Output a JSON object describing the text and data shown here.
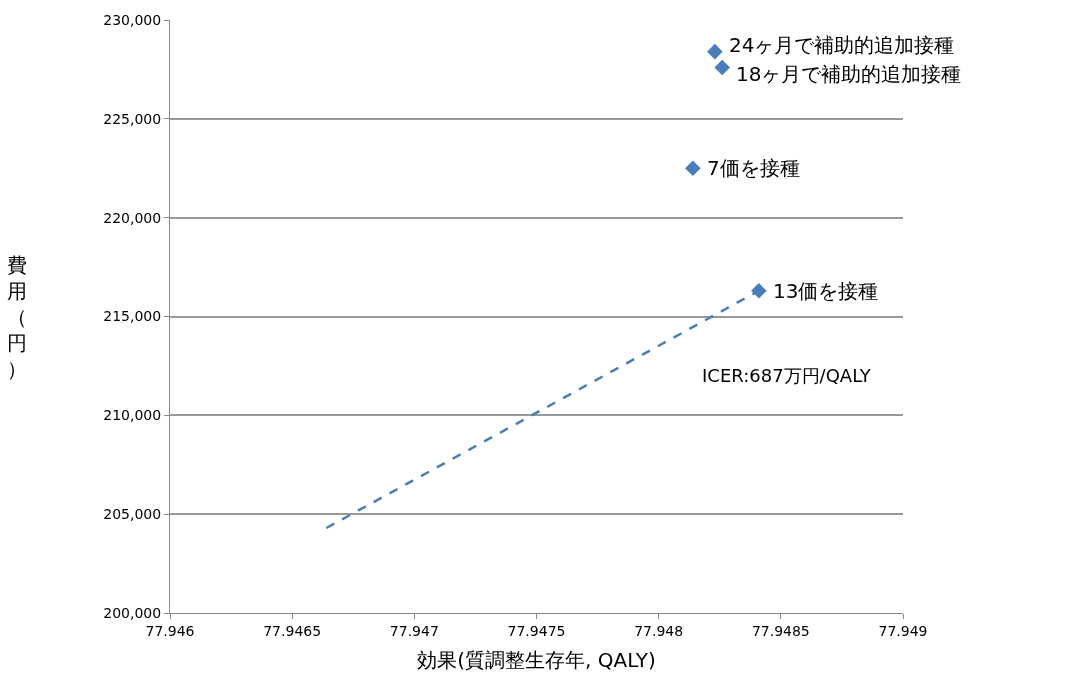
{
  "chart_data": {
    "type": "scatter",
    "xlabel": "効果(質調整生存年, QALY)",
    "ylabel": "費用（円）",
    "series": [
      {
        "color": "#4a7ebb",
        "marker": "diamond",
        "x": [
          77.94823,
          77.94826,
          77.94814,
          77.94841
        ],
        "values": [
          228400,
          227600,
          222500,
          216300
        ]
      },
      {
        "type": "line",
        "color": "#4a7ebb",
        "marker": "none",
        "line_style": "dashed",
        "x": [
          77.94664,
          77.94841
        ],
        "values": [
          204300,
          216300
        ]
      }
    ],
    "annotations": [
      {
        "text": "24ヶ月で補助的追加接種",
        "x": 77.94823,
        "y": 228400
      },
      {
        "text": "18ヶ月で補助的追加接種",
        "x": 77.94826,
        "y": 227600
      },
      {
        "text": "7価を接種",
        "x": 77.94814,
        "y": 222500
      },
      {
        "text": "13価を接種",
        "x": 77.94841,
        "y": 216300
      },
      "ICER:687万円/QALY"
    ],
    "xlim": [
      77.946,
      77.949
    ],
    "xticks": [
      77.946,
      77.9465,
      77.947,
      77.9475,
      77.948,
      77.9485,
      77.949
    ],
    "ylim": [
      200000,
      230000
    ],
    "yticks": [
      {
        "value": 200000,
        "label": "200,000"
      },
      {
        "value": 205000,
        "label": "205,000"
      },
      {
        "value": 210000,
        "label": "210,000"
      },
      {
        "value": 215000,
        "label": "215,000"
      },
      {
        "value": 220000,
        "label": "220,000"
      },
      {
        "value": 225000,
        "label": "225,000"
      },
      {
        "value": 230000,
        "label": "230,000"
      }
    ],
    "grid": "y"
  }
}
